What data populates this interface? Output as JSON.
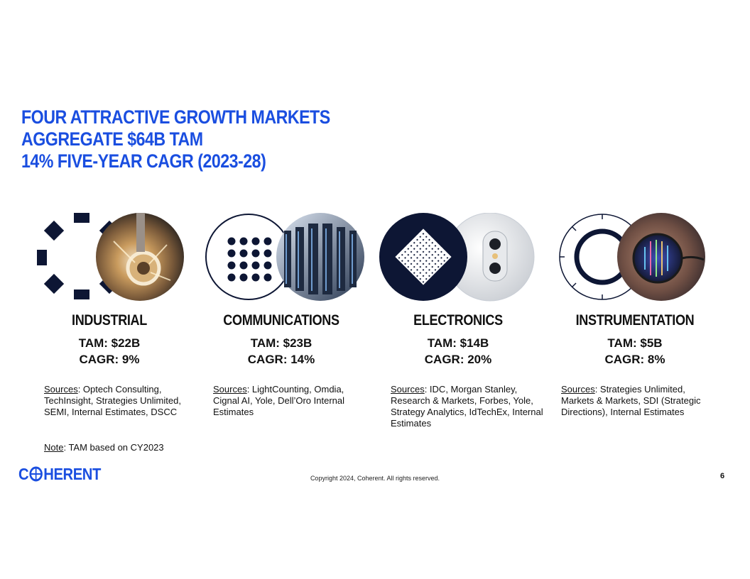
{
  "title": {
    "line1": "FOUR ATTRACTIVE GROWTH MARKETS",
    "line2": "AGGREGATE $64B TAM",
    "line3": "14% FIVE-YEAR CAGR (2023-28)"
  },
  "segments": [
    {
      "name": "INDUSTRIAL",
      "tam": "TAM: $22B",
      "cagr": "CAGR: 9%",
      "sources_label": "Sources",
      "sources_text": ": Optech Consulting, TechInsight, Strategies Unlimited, SEMI, Internal Estimates, DSCC"
    },
    {
      "name": "COMMUNICATIONS",
      "tam": "TAM: $23B",
      "cagr": "CAGR: 14%",
      "sources_label": "Sources",
      "sources_text": ": LightCounting, Omdia, Cignal AI, Yole, Dell’Oro Internal Estimates"
    },
    {
      "name": "ELECTRONICS",
      "tam": "TAM: $14B",
      "cagr": "CAGR: 20%",
      "sources_label": "Sources",
      "sources_text": ": IDC, Morgan Stanley, Research & Markets, Forbes, Yole, Strategy Analytics, IdTechEx, Internal Estimates"
    },
    {
      "name": "INSTRUMENTATION",
      "tam": "TAM: $5B",
      "cagr": "CAGR: 8%",
      "sources_label": "Sources",
      "sources_text": ": Strategies Unlimited, Markets & Markets, SDI (Strategic Directions), Internal Estimates"
    }
  ],
  "note": {
    "label": "Note",
    "text": ": TAM based on CY2023"
  },
  "footer": {
    "logo_text": "C⊕HERENT",
    "logo_left": "C",
    "logo_right": "HERENT",
    "copyright": "Copyright 2024, Coherent. All rights reserved.",
    "page_number": "6"
  },
  "colors": {
    "accent_blue": "#1a4ee0",
    "navy": "#0d1634"
  },
  "icons": [
    "industrial-icon",
    "communications-icon",
    "electronics-icon",
    "instrumentation-icon"
  ]
}
